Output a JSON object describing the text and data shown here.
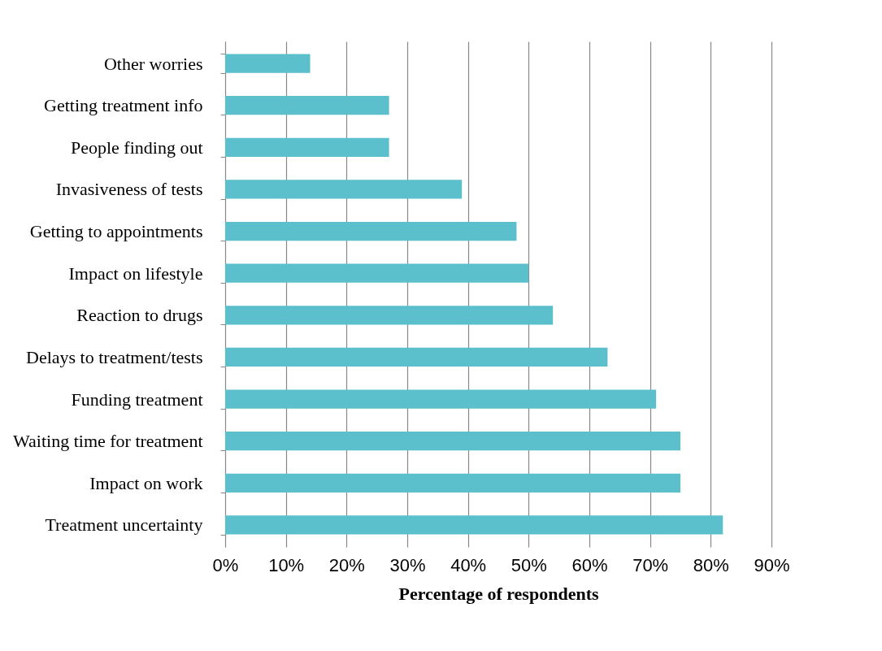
{
  "chart_data": {
    "type": "bar",
    "orientation": "horizontal",
    "xlabel": "Percentage of respondents",
    "categories": [
      "Other worries",
      "Getting treatment info",
      "People finding out",
      "Invasiveness of tests",
      "Getting to appointments",
      "Impact on lifestyle",
      "Reaction to drugs",
      "Delays to treatment/tests",
      "Funding treatment",
      "Waiting time for treatment",
      "Impact on work",
      "Treatment uncertainty"
    ],
    "values": [
      14,
      27,
      27,
      39,
      48,
      50,
      54,
      63,
      71,
      75,
      75,
      82
    ],
    "color": "#5bbfcc",
    "xlim": [
      0,
      90
    ],
    "xticks": [
      {
        "value": 0,
        "label": "0%"
      },
      {
        "value": 10,
        "label": "10%"
      },
      {
        "value": 20,
        "label": "20%"
      },
      {
        "value": 30,
        "label": "30%"
      },
      {
        "value": 40,
        "label": "40%"
      },
      {
        "value": 50,
        "label": "50%"
      },
      {
        "value": 60,
        "label": "60%"
      },
      {
        "value": 70,
        "label": "70%"
      },
      {
        "value": 80,
        "label": "80%"
      },
      {
        "value": 90,
        "label": "90%"
      }
    ],
    "grid": "x"
  }
}
